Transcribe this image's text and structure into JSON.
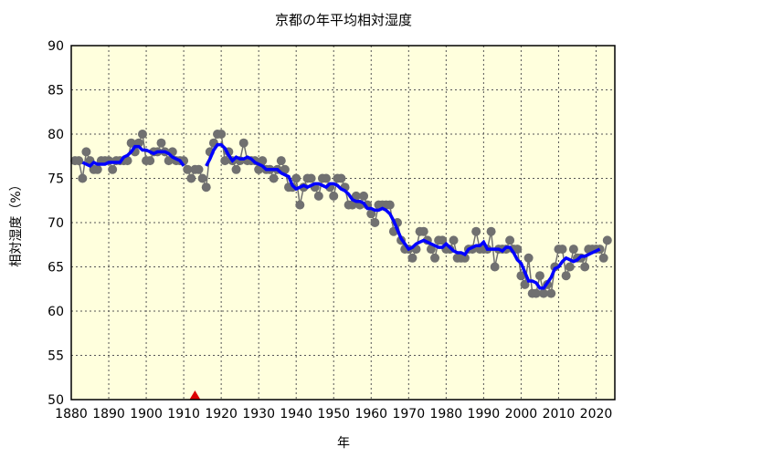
{
  "chart_data": {
    "type": "line",
    "title": "京都の年平均相対湿度",
    "xlabel": "年",
    "ylabel": "相対湿度（%）",
    "xlim": [
      1880,
      2025
    ],
    "ylim": [
      50,
      90
    ],
    "xticks": [
      1880,
      1890,
      1900,
      1910,
      1920,
      1930,
      1940,
      1950,
      1960,
      1970,
      1980,
      1990,
      2000,
      2010,
      2020
    ],
    "yticks": [
      50,
      55,
      60,
      65,
      70,
      75,
      80,
      85,
      90
    ],
    "grid": true,
    "background": "#ffffdd",
    "colors": {
      "points": "#707070",
      "moving_average": "#0000ff",
      "marker": "#dd0000"
    },
    "series": [
      {
        "type": "points-line",
        "x": [
          1881,
          1882,
          1883,
          1884,
          1885,
          1886,
          1887,
          1888,
          1889,
          1890,
          1891,
          1892,
          1893,
          1894,
          1895,
          1896,
          1897,
          1898,
          1899,
          1900,
          1901,
          1902,
          1903,
          1904,
          1905,
          1906,
          1907,
          1908,
          1909,
          1910,
          1911,
          1912,
          1913,
          1914,
          1915,
          1916,
          1917,
          1918,
          1919,
          1920,
          1921,
          1922,
          1923,
          1924,
          1925,
          1926,
          1927,
          1928,
          1929,
          1930,
          1931,
          1932,
          1933,
          1934,
          1935,
          1936,
          1937,
          1938,
          1939,
          1940,
          1941,
          1942,
          1943,
          1944,
          1945,
          1946,
          1947,
          1948,
          1949,
          1950,
          1951,
          1952,
          1953,
          1954,
          1955,
          1956,
          1957,
          1958,
          1959,
          1960,
          1961,
          1962,
          1963,
          1964,
          1965,
          1966,
          1967,
          1968,
          1969,
          1970,
          1971,
          1972,
          1973,
          1974,
          1975,
          1976,
          1977,
          1978,
          1979,
          1980,
          1981,
          1982,
          1983,
          1984,
          1985,
          1986,
          1987,
          1988,
          1989,
          1990,
          1991,
          1992,
          1993,
          1994,
          1995,
          1996,
          1997,
          1998,
          1999,
          2000,
          2001,
          2002,
          2003,
          2004,
          2005,
          2006,
          2007,
          2008,
          2009,
          2010,
          2011,
          2012,
          2013,
          2014,
          2015,
          2016,
          2017,
          2018,
          2019,
          2020,
          2021,
          2022,
          2023
        ],
        "y": [
          77,
          77,
          75,
          78,
          77,
          76,
          76,
          77,
          77,
          77,
          76,
          77,
          77,
          77,
          77,
          79,
          78,
          79,
          80,
          77,
          77,
          78,
          78,
          79,
          78,
          77,
          78,
          77,
          77,
          77,
          76,
          75,
          76,
          76,
          75,
          74,
          78,
          79,
          80,
          80,
          77,
          78,
          77,
          76,
          77,
          79,
          77,
          77,
          77,
          76,
          77,
          76,
          76,
          75,
          76,
          77,
          76,
          74,
          74,
          75,
          72,
          74,
          75,
          75,
          74,
          73,
          75,
          75,
          74,
          73,
          75,
          75,
          74,
          72,
          72,
          73,
          72,
          73,
          72,
          71,
          70,
          72,
          72,
          72,
          72,
          69,
          70,
          68,
          67,
          67,
          66,
          67,
          69,
          69,
          68,
          67,
          66,
          68,
          68,
          67,
          67,
          68,
          66,
          66,
          66,
          67,
          67,
          69,
          67,
          67,
          67,
          69,
          65,
          67,
          67,
          67,
          68,
          67,
          67,
          64,
          63,
          66,
          62,
          62,
          64,
          62,
          63,
          62,
          65,
          67,
          67,
          64,
          65,
          67,
          66,
          66,
          65,
          67,
          67,
          67,
          67,
          66,
          68
        ]
      },
      {
        "type": "moving-average",
        "window": 5
      }
    ],
    "annotations": [
      {
        "type": "triangle-marker",
        "x": 1913,
        "y": 50
      }
    ]
  }
}
